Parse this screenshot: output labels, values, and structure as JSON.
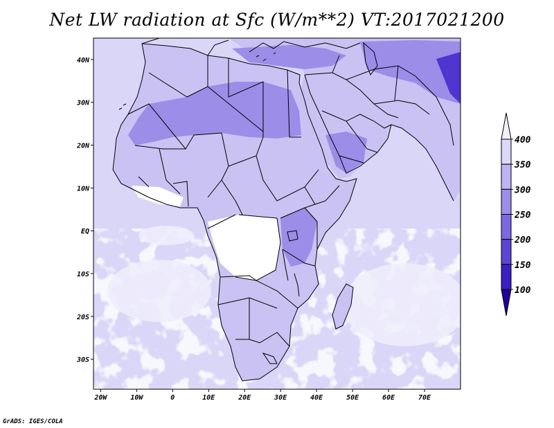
{
  "title": "Net LW radiation at Sfc (W/m**2) VT:2017021200",
  "credit": "GrADS: IGES/COLA",
  "map": {
    "lon_range": [
      -22,
      80
    ],
    "lat_range": [
      -37,
      45
    ],
    "lon_ticks": [
      {
        "value": -20,
        "label": "20W"
      },
      {
        "value": -10,
        "label": "10W"
      },
      {
        "value": 0,
        "label": "0"
      },
      {
        "value": 10,
        "label": "10E"
      },
      {
        "value": 20,
        "label": "20E"
      },
      {
        "value": 30,
        "label": "30E"
      },
      {
        "value": 40,
        "label": "40E"
      },
      {
        "value": 50,
        "label": "50E"
      },
      {
        "value": 60,
        "label": "60E"
      },
      {
        "value": 70,
        "label": "70E"
      }
    ],
    "lat_ticks": [
      {
        "value": 40,
        "label": "40N"
      },
      {
        "value": 30,
        "label": "30N"
      },
      {
        "value": 20,
        "label": "20N"
      },
      {
        "value": 10,
        "label": "10N"
      },
      {
        "value": 0,
        "label": "EQ"
      },
      {
        "value": -10,
        "label": "10S"
      },
      {
        "value": -20,
        "label": "20S"
      },
      {
        "value": -30,
        "label": "30S"
      }
    ]
  },
  "colorbar": {
    "levels": [
      100,
      150,
      200,
      250,
      300,
      350,
      400
    ],
    "labels": [
      "100",
      "150",
      "200",
      "250",
      "300",
      "350",
      "400"
    ],
    "colors": [
      "#220099",
      "#3b1fc4",
      "#5b45d6",
      "#7c68e0",
      "#9d8ee9",
      "#bdb4f1",
      "#dcd8f8",
      "#f2f0fd"
    ]
  },
  "colors": {
    "ocean_background": "#d9d6f7",
    "ocean_bright": "#eeedfc",
    "land_warm": "#ffffff",
    "land_mid": "#c9c2f2",
    "land_cool": "#9b8de8",
    "land_cold": "#7a66dd",
    "highland_dark": "#4f34cf",
    "outline": "#000000"
  }
}
